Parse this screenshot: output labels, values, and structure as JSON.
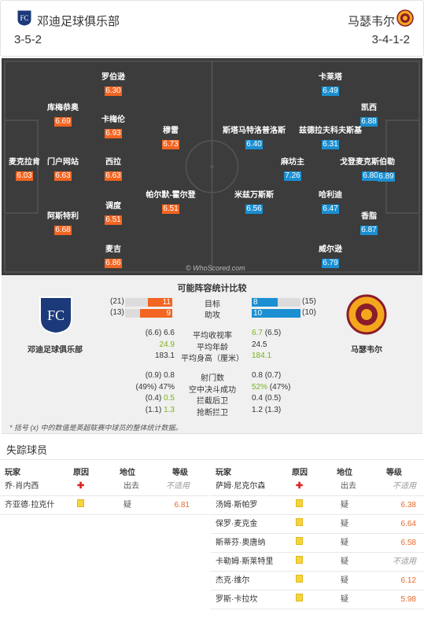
{
  "header": {
    "home_name": "邓迪足球俱乐部",
    "home_formation": "3-5-2",
    "away_name": "马瑟韦尔",
    "away_formation": "3-4-1-2"
  },
  "home_players": [
    {
      "name": "麦克拉肯",
      "rating": "6.03"
    },
    {
      "name": "库梅恭奥",
      "rating": "6.69"
    },
    {
      "name": "门户网站",
      "rating": "6.63"
    },
    {
      "name": "阿斯特利",
      "rating": "6.68"
    },
    {
      "name": "罗伯逊",
      "rating": "6.30"
    },
    {
      "name": "卡梅伦",
      "rating": "6.93"
    },
    {
      "name": "西拉",
      "rating": "6.63"
    },
    {
      "name": "调度",
      "rating": "6.51"
    },
    {
      "name": "麦吉",
      "rating": "6.86"
    },
    {
      "name": "穆雷",
      "rating": "6.73"
    },
    {
      "name": "帕尔默-霍尔登",
      "rating": "6.51"
    }
  ],
  "away_players": [
    {
      "name": "卡莱塔",
      "rating": "6.49"
    },
    {
      "name": "斯塔马特洛普洛斯",
      "rating": "6.40"
    },
    {
      "name": "兹德拉夫科夫斯基",
      "rating": "6.31"
    },
    {
      "name": "米兹万斯斯",
      "rating": "6.56"
    },
    {
      "name": "凯西",
      "rating": "6.88"
    },
    {
      "name": "戈登麦克斯伯勒",
      "rating": "6.80"
    },
    {
      "name": "麻坊主",
      "rating": "7.26"
    },
    {
      "name": "哈利迪",
      "rating": "6.47"
    },
    {
      "name": "香脂",
      "rating": "6.87"
    },
    {
      "name": "威尔逊",
      "rating": "6.79"
    },
    {
      "name": "",
      "rating": "6.89"
    }
  ],
  "watermark": "© WhoScored.com",
  "comparison": {
    "title": "可能阵容统计比较",
    "home_team": "邓迪足球俱乐部",
    "away_team": "马瑟韦尔",
    "bars": [
      {
        "label": "目标",
        "home": "11",
        "home_prev": "(21)",
        "away": "8",
        "away_prev": "(15)",
        "home_frac": 0.524,
        "away_frac": 0.533
      },
      {
        "label": "助攻",
        "home": "9",
        "home_prev": "(13)",
        "away": "10",
        "away_prev": "(10)",
        "home_frac": 0.692,
        "away_frac": 1.0
      }
    ],
    "rows1": [
      {
        "label": "平均收视率",
        "home": "6.6",
        "home_prev": "(6.6)",
        "away": "6.7",
        "away_prev": "(6.5)",
        "home_green": false,
        "away_green": true
      },
      {
        "label": "平均年龄",
        "home": "24.9",
        "home_prev": "",
        "away": "24.5",
        "away_prev": "",
        "home_green": true,
        "away_green": false
      },
      {
        "label": "平均身高（厘米）",
        "home": "183.1",
        "home_prev": "",
        "away": "184.1",
        "away_prev": "",
        "home_green": false,
        "away_green": true
      }
    ],
    "rows2": [
      {
        "label": "射门数",
        "home": "0.8",
        "home_prev": "(0.9)",
        "away": "0.8",
        "away_prev": "(0.7)",
        "home_green": false,
        "away_green": false
      },
      {
        "label": "空中决斗成功",
        "home": "47%",
        "home_prev": "(49%)",
        "away": "52%",
        "away_prev": "(47%)",
        "home_green": false,
        "away_green": true
      },
      {
        "label": "拦截后卫",
        "home": "0.5",
        "home_prev": "(0.4)",
        "away": "0.4",
        "away_prev": "(0.5)",
        "home_green": true,
        "away_green": false
      },
      {
        "label": "抢断拦卫",
        "home": "1.3",
        "home_prev": "(1.1)",
        "away": "1.2",
        "away_prev": "(1.3)",
        "home_green": true,
        "away_green": false
      }
    ],
    "note": "* 括号 (x) 中的数值是英超联赛中球员的整体统计数据。"
  },
  "missing": {
    "title": "失踪球员",
    "headers": [
      "玩家",
      "原因",
      "地位",
      "等级"
    ],
    "home": [
      {
        "player": "乔·肖内西",
        "reason": "injury",
        "status": "出去",
        "rating": "不适用"
      },
      {
        "player": "齐亚德·拉克什",
        "reason": "doubt",
        "status": "疑",
        "rating": "6.81"
      }
    ],
    "away": [
      {
        "player": "萨姆·尼克尔森",
        "reason": "injury",
        "status": "出去",
        "rating": "不适用"
      },
      {
        "player": "汤姆·斯帕罗",
        "reason": "doubt",
        "status": "疑",
        "rating": "6.38"
      },
      {
        "player": "保罗·麦克金",
        "reason": "doubt",
        "status": "疑",
        "rating": "6.64"
      },
      {
        "player": "斯蒂芬·奥唐纳",
        "reason": "doubt",
        "status": "疑",
        "rating": "6.58"
      },
      {
        "player": "卡勒姆·斯莱特里",
        "reason": "doubt",
        "status": "疑",
        "rating": "不适用"
      },
      {
        "player": "杰克·维尔",
        "reason": "doubt",
        "status": "疑",
        "rating": "6.12"
      },
      {
        "player": "罗斯·卡拉坎",
        "reason": "doubt",
        "status": "疑",
        "rating": "5.98"
      }
    ]
  }
}
